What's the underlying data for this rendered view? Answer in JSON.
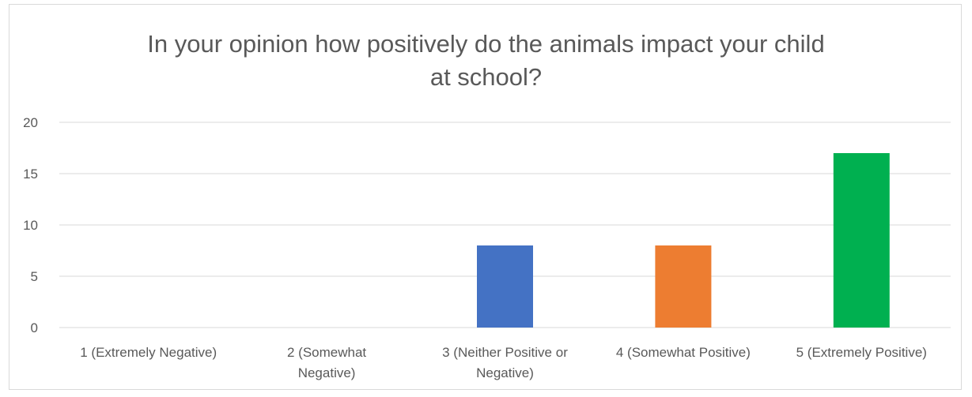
{
  "chart_data": {
    "type": "bar",
    "title": "In your opinion how positively do the animals impact your child at school?",
    "title_lines": [
      "In your opinion how positively do the animals impact your child",
      "at school?"
    ],
    "categories": [
      "1 (Extremely Negative)",
      "2 (Somewhat Negative)",
      "3 (Neither Positive or Negative)",
      "4 (Somewhat Positive)",
      "5 (Extremely Positive)"
    ],
    "category_lines": [
      [
        "1 (Extremely Negative)"
      ],
      [
        "2 (Somewhat",
        "Negative)"
      ],
      [
        "3 (Neither Positive or",
        "Negative)"
      ],
      [
        "4 (Somewhat Positive)"
      ],
      [
        "5 (Extremely Positive)"
      ]
    ],
    "values": [
      0,
      0,
      8,
      8,
      17
    ],
    "colors": [
      "#4472c4",
      "#4472c4",
      "#4472c4",
      "#ed7d31",
      "#00b050"
    ],
    "ylim": [
      0,
      20
    ],
    "yticks": [
      "0",
      "5",
      "10",
      "15",
      "20"
    ],
    "xlabel": "",
    "ylabel": "",
    "grid": true,
    "legend": "none",
    "gridline_color": "#d9d9d9",
    "text_color": "#595959"
  }
}
